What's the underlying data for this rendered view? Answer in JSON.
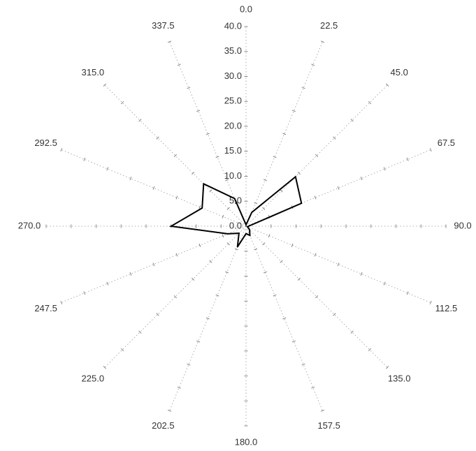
{
  "chart_data": {
    "type": "radar",
    "title": "",
    "directions": [
      "0.0",
      "22.5",
      "45.0",
      "67.5",
      "90.0",
      "112.5",
      "135.0",
      "157.5",
      "180.0",
      "202.5",
      "225.0",
      "247.5",
      "270.0",
      "292.5",
      "315.0",
      "337.5"
    ],
    "radial_ticks": [
      "0.0",
      "5.0",
      "10.0",
      "15.0",
      "20.0",
      "25.0",
      "30.0",
      "35.0",
      "40.0"
    ],
    "rlim": [
      0,
      40
    ],
    "grid": "dotted-spokes",
    "series": [
      {
        "values": [
          0.3,
          3.0,
          14.0,
          12.0,
          0.5,
          0.3,
          1.0,
          2.0,
          1.5,
          4.5,
          2.0,
          4.0,
          15.0,
          9.5,
          12.0,
          6.0
        ]
      }
    ]
  }
}
